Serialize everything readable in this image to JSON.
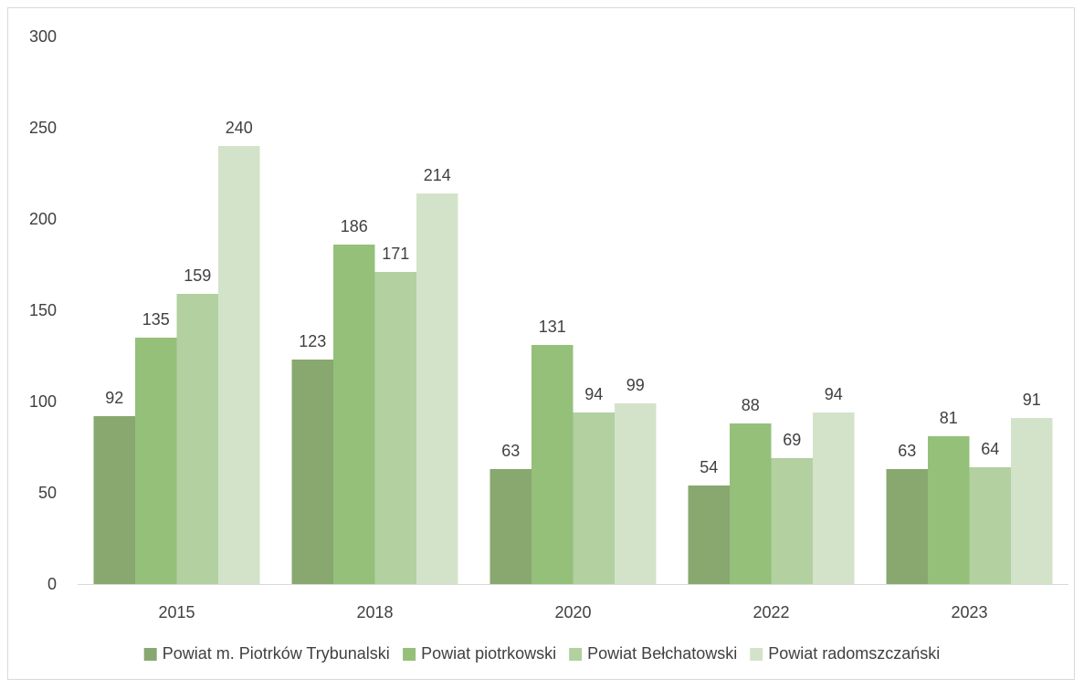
{
  "chart_data": {
    "type": "bar",
    "categories": [
      "2015",
      "2018",
      "2020",
      "2022",
      "2023"
    ],
    "ylim": [
      0,
      300
    ],
    "yticks": [
      0,
      50,
      100,
      150,
      200,
      250,
      300
    ],
    "series": [
      {
        "name": "Powiat m. Piotrków Trybunalski",
        "color": "#88a870",
        "values": [
          92,
          123,
          63,
          54,
          63
        ]
      },
      {
        "name": "Powiat piotrkowski",
        "color": "#94c07a",
        "values": [
          135,
          186,
          131,
          88,
          81
        ]
      },
      {
        "name": "Powiat Bełchatowski",
        "color": "#b2d0a0",
        "values": [
          159,
          171,
          94,
          69,
          64
        ]
      },
      {
        "name": "Powiat radomszczański",
        "color": "#d3e3c9",
        "values": [
          240,
          214,
          99,
          94,
          91
        ]
      }
    ],
    "legend_position": "bottom",
    "grid": false
  }
}
